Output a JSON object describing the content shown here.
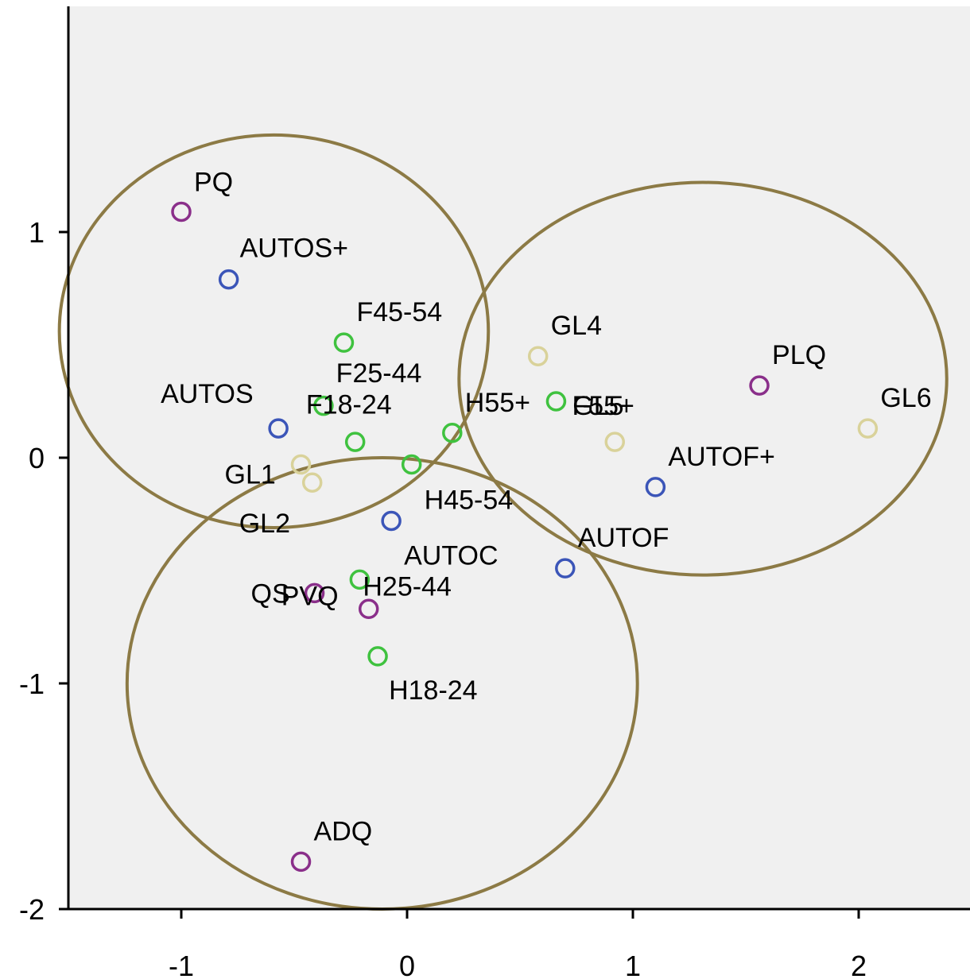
{
  "chart_data": {
    "type": "scatter",
    "title": "",
    "xlabel": "",
    "ylabel": "",
    "xlim": [
      -1.5,
      2.5
    ],
    "ylim": [
      -2,
      2
    ],
    "xticks": [
      -1,
      0,
      1,
      2
    ],
    "yticks": [
      -2,
      -1,
      0,
      1
    ],
    "xtick_labels": [
      "-1",
      "0",
      "1",
      "2"
    ],
    "ytick_labels": [
      "-2",
      "-1",
      "0",
      "1"
    ],
    "grid": false,
    "legend": "none",
    "colors": {
      "plot_background": "#f0f0f0",
      "purple": "#8a2f8a",
      "blue": "#3b55b8",
      "green": "#3fc23f",
      "tan": "#d9d29a",
      "ellipse": "#8c7a45"
    },
    "points": [
      {
        "label": "PQ",
        "x": -1.0,
        "y": 1.09,
        "color": "purple"
      },
      {
        "label": "AUTOS+",
        "x": -0.79,
        "y": 0.79,
        "color": "blue"
      },
      {
        "label": "F45-54",
        "x": -0.28,
        "y": 0.51,
        "color": "green"
      },
      {
        "label": "F25-44",
        "x": -0.23,
        "y": 0.07,
        "color": "green"
      },
      {
        "label": "AUTOS",
        "x": -0.57,
        "y": 0.13,
        "color": "blue"
      },
      {
        "label": "F18-24",
        "x": -0.37,
        "y": 0.23,
        "color": "green"
      },
      {
        "label": "H55+",
        "x": 0.2,
        "y": 0.11,
        "color": "green"
      },
      {
        "label": "GL4",
        "x": 0.58,
        "y": 0.45,
        "color": "tan"
      },
      {
        "label": "F55+",
        "x": 0.66,
        "y": 0.25,
        "color": "green"
      },
      {
        "label": "GL5",
        "x": 0.92,
        "y": 0.07,
        "color": "tan"
      },
      {
        "label": "PLQ",
        "x": 1.56,
        "y": 0.32,
        "color": "purple"
      },
      {
        "label": "GL6",
        "x": 2.04,
        "y": 0.13,
        "color": "tan"
      },
      {
        "label": "AUTOF+",
        "x": 1.1,
        "y": -0.13,
        "color": "blue"
      },
      {
        "label": "GL1",
        "x": -0.47,
        "y": -0.03,
        "color": "tan"
      },
      {
        "label": "GL2",
        "x": -0.42,
        "y": -0.11,
        "color": "tan"
      },
      {
        "label": "H45-54",
        "x": 0.02,
        "y": -0.03,
        "color": "green"
      },
      {
        "label": "AUTOC",
        "x": -0.07,
        "y": -0.28,
        "color": "blue"
      },
      {
        "label": "AUTOF",
        "x": 0.7,
        "y": -0.49,
        "color": "blue"
      },
      {
        "label": "H25-44",
        "x": -0.21,
        "y": -0.54,
        "color": "green"
      },
      {
        "label": "QS",
        "x": -0.41,
        "y": -0.6,
        "color": "purple"
      },
      {
        "label": "PVQ",
        "x": -0.17,
        "y": -0.67,
        "color": "purple"
      },
      {
        "label": "H18-24",
        "x": -0.13,
        "y": -0.88,
        "color": "green"
      },
      {
        "label": "ADQ",
        "x": -0.47,
        "y": -1.79,
        "color": "purple"
      }
    ],
    "ellipses": [
      {
        "cx": -0.59,
        "cy": 0.56,
        "rx": 0.95,
        "ry": 0.87
      },
      {
        "cx": 1.31,
        "cy": 0.35,
        "rx": 1.08,
        "ry": 0.87
      },
      {
        "cx": -0.11,
        "cy": -1.0,
        "rx": 1.13,
        "ry": 1.0
      }
    ]
  }
}
